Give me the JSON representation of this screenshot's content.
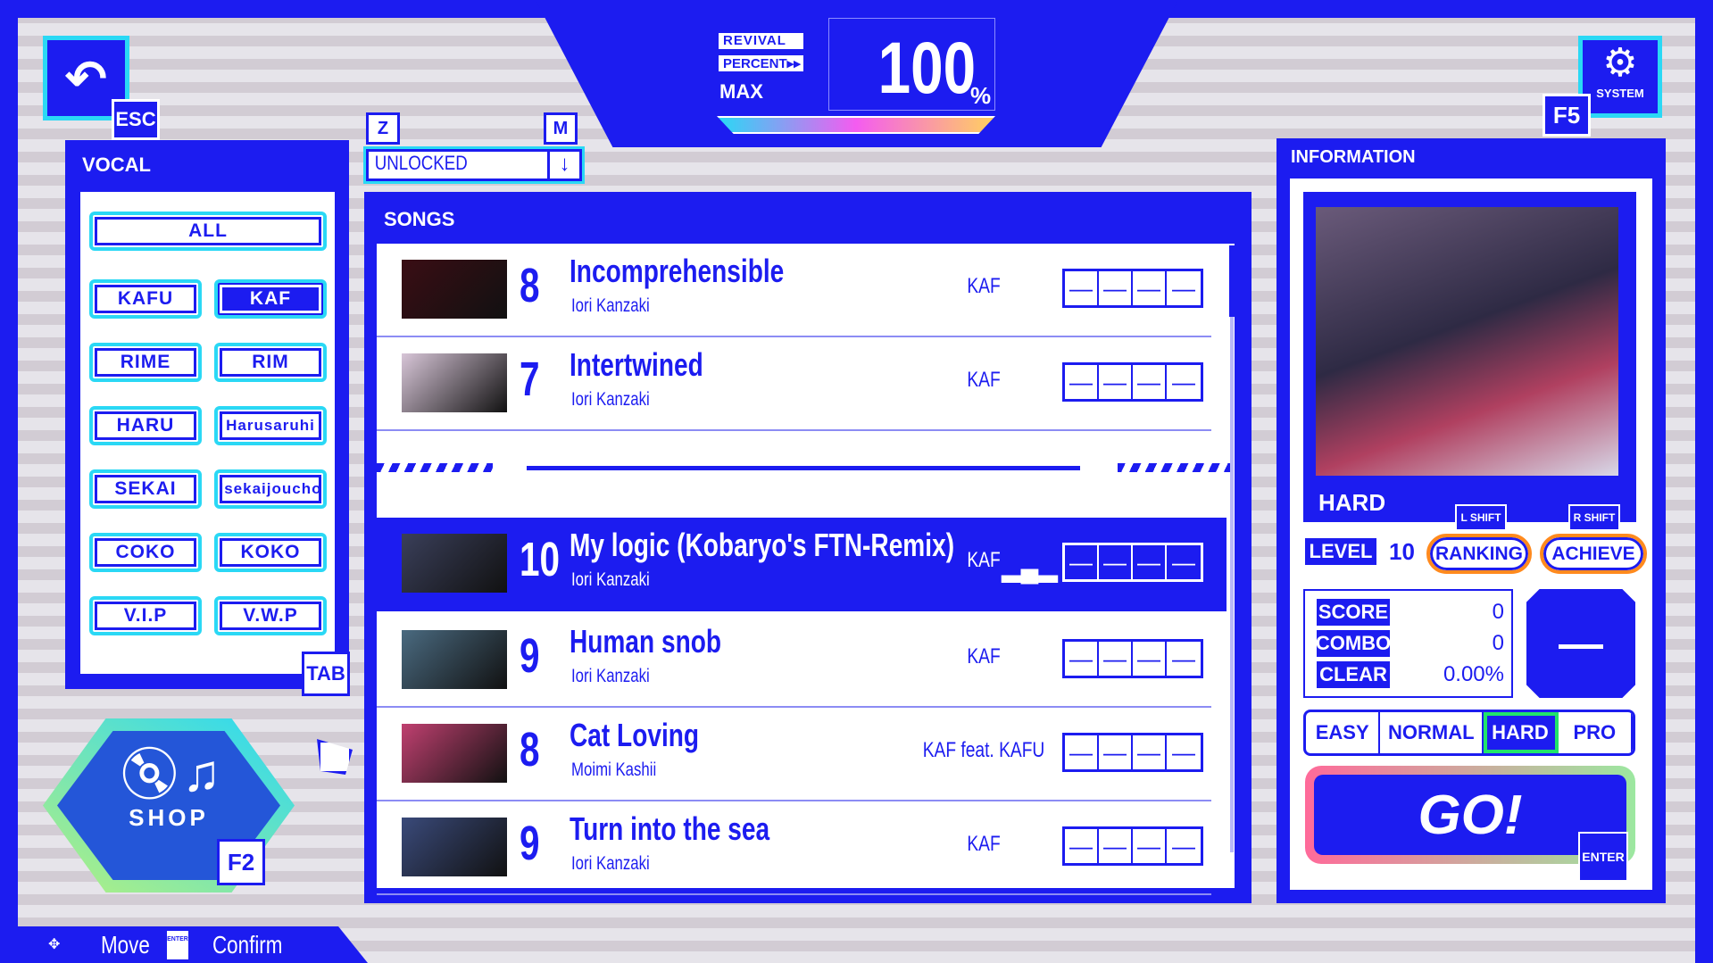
{
  "colors": {
    "accent": "#1c1cf0",
    "highlight": "#2ad8f5",
    "selected_diff": "#21e36a",
    "ranking_border": "#ff8a1e"
  },
  "header": {
    "back_key": "ESC",
    "system_label": "SYSTEM",
    "system_key": "F5",
    "revival": "REVIVAL",
    "percent": "PERCENT▸▸",
    "max": "MAX",
    "value": "100",
    "unit": "%",
    "revival_percent": 100
  },
  "vocal": {
    "title": "VOCAL",
    "all": "ALL",
    "tab_key": "TAB",
    "selected": "KAF",
    "buttons": [
      "KAFU",
      "KAF",
      "RIME",
      "RIM",
      "HARU",
      "Harusaruhi",
      "SEKAI",
      "Isekaijoucho",
      "COKO",
      "KOKO",
      "V.I.P",
      "V.W.P"
    ]
  },
  "filter": {
    "left_key": "Z",
    "right_key": "M",
    "value": "UNLOCKED",
    "icon": "arrow-down-icon"
  },
  "songs": {
    "title": "SONGS",
    "items": [
      {
        "level": "8",
        "title": "Incomprehensible",
        "artist": "Iori Kanzaki",
        "vocal": "KAF",
        "thumb": "#3a0d14",
        "selected": false
      },
      {
        "level": "7",
        "title": "Intertwined",
        "artist": "Iori Kanzaki",
        "vocal": "KAF",
        "thumb": "#d8c6d8",
        "selected": false
      },
      {
        "level": "10",
        "title": "My logic (Kobaryo's FTN-Remix)",
        "artist": "Iori Kanzaki",
        "vocal": "KAF",
        "thumb": "#3a3f5a",
        "selected": true
      },
      {
        "level": "9",
        "title": "Human snob",
        "artist": "Iori Kanzaki",
        "vocal": "KAF",
        "thumb": "#4a6a80",
        "selected": false
      },
      {
        "level": "8",
        "title": "Cat Loving",
        "artist": "Moimi Kashii",
        "vocal": "KAF feat. KAFU",
        "thumb": "#c04070",
        "selected": false
      },
      {
        "level": "9",
        "title": "Turn into the sea",
        "artist": "Iori Kanzaki",
        "vocal": "KAF",
        "thumb": "#3a4a7a",
        "selected": false
      }
    ]
  },
  "info": {
    "title": "INFORMATION",
    "difficulty": "HARD",
    "l_shift": "L SHIFT",
    "r_shift": "R SHIFT",
    "level_label": "LEVEL",
    "level": "10",
    "ranking": "RANKING",
    "achieve": "ACHIEVE",
    "score_label": "SCORE",
    "score": "0",
    "combo_label": "COMBO",
    "combo": "0",
    "clear_label": "CLEAR",
    "clear": "0.00%",
    "rank": "—",
    "difficulties": [
      "EASY",
      "NORMAL",
      "HARD",
      "PRO"
    ],
    "selected_difficulty": "HARD",
    "go": "GO!",
    "enter_key": "ENTER"
  },
  "shop": {
    "label": "SHOP",
    "key": "F2"
  },
  "footer": {
    "move": "Move",
    "enter_icon": "ENTER",
    "confirm": "Confirm"
  }
}
